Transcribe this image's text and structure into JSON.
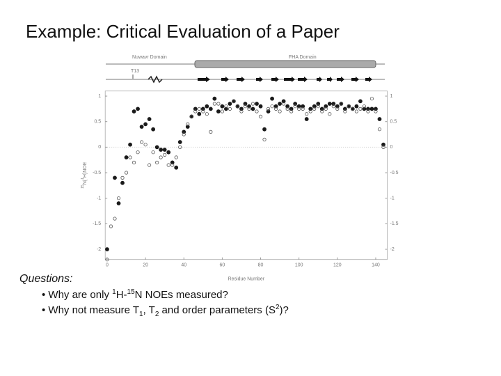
{
  "title": "Example: Critical Evaluation of a Paper",
  "chart_data": {
    "type": "scatter",
    "x_label": "Residue Number",
    "y_label": [
      "15",
      "N{",
      "1",
      "H}NOE"
    ],
    "annotations": [
      "Nuwavr Domain",
      "FHA Domain",
      "T13"
    ],
    "x": [
      0,
      2,
      4,
      6,
      8,
      10,
      12,
      14,
      16,
      18,
      20,
      22,
      24,
      26,
      28,
      30,
      32,
      34,
      36,
      38,
      40,
      42,
      44,
      46,
      48,
      50,
      52,
      54,
      56,
      58,
      60,
      62,
      64,
      66,
      68,
      70,
      72,
      74,
      76,
      78,
      80,
      82,
      84,
      86,
      88,
      90,
      92,
      94,
      96,
      98,
      100,
      102,
      104,
      106,
      108,
      110,
      112,
      114,
      116,
      118,
      120,
      122,
      124,
      126,
      128,
      130,
      132,
      134,
      136,
      138,
      140,
      142,
      144
    ],
    "series": [
      {
        "color": "#1a1a1a",
        "marker": "filled",
        "values": [
          -2.0,
          null,
          -0.6,
          -1.1,
          -0.7,
          -0.2,
          0.05,
          0.7,
          0.75,
          0.4,
          0.45,
          0.55,
          0.35,
          0.0,
          -0.05,
          -0.05,
          -0.1,
          -0.3,
          -0.4,
          0.1,
          0.3,
          0.4,
          0.6,
          0.75,
          0.65,
          0.75,
          0.8,
          0.75,
          0.95,
          0.7,
          0.8,
          0.75,
          0.85,
          0.9,
          0.8,
          0.75,
          0.85,
          0.8,
          0.75,
          0.85,
          0.8,
          0.35,
          0.7,
          0.95,
          0.8,
          0.85,
          0.9,
          0.8,
          0.75,
          0.85,
          0.8,
          0.8,
          0.55,
          0.75,
          0.8,
          0.85,
          0.75,
          0.8,
          0.85,
          0.85,
          0.8,
          0.85,
          0.75,
          0.8,
          0.75,
          0.8,
          0.9,
          0.75,
          0.75,
          0.75,
          0.75,
          0.55,
          0.05
        ]
      },
      {
        "color": "#555555",
        "marker": "open",
        "values": [
          -2.2,
          -1.55,
          -1.4,
          -1.0,
          -0.6,
          -0.5,
          -0.2,
          -0.3,
          -0.1,
          0.1,
          0.05,
          -0.35,
          -0.1,
          -0.3,
          -0.2,
          -0.15,
          -0.35,
          -0.35,
          -0.2,
          0.0,
          0.25,
          0.45,
          0.6,
          0.7,
          0.75,
          0.7,
          0.65,
          0.3,
          0.85,
          0.85,
          0.7,
          0.8,
          0.75,
          0.9,
          0.8,
          0.7,
          0.8,
          0.75,
          0.85,
          0.7,
          0.6,
          0.15,
          0.75,
          0.8,
          0.75,
          0.7,
          0.85,
          0.75,
          0.7,
          0.8,
          0.75,
          0.75,
          0.65,
          0.7,
          0.75,
          0.8,
          0.7,
          0.75,
          0.65,
          0.8,
          0.75,
          0.85,
          0.7,
          0.8,
          0.75,
          0.7,
          0.75,
          0.8,
          0.7,
          0.95,
          0.7,
          0.35,
          0.0
        ]
      }
    ],
    "xlim": [
      -1,
      146
    ],
    "xticks": [
      0,
      20,
      40,
      60,
      80,
      100,
      120,
      140
    ],
    "ylim": [
      -2.2,
      1.1
    ],
    "yticks": [
      1,
      0.5,
      0,
      -0.5,
      -1,
      -1.5,
      -2
    ]
  },
  "questions": {
    "heading": "Questions:",
    "items": [
      [
        "• Why are only ",
        "1",
        "H-",
        "15",
        "N NOEs measured?"
      ],
      [
        "• Why not measure T",
        "1",
        ", T",
        "2",
        " and order parameters (S",
        "2",
        ")?"
      ]
    ]
  }
}
